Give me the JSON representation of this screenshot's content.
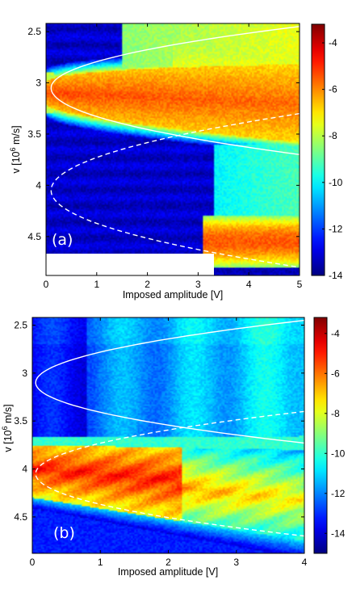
{
  "chart_data": [
    {
      "type": "heatmap",
      "panel_label": "(a)",
      "xlabel": "Imposed amplitude [V]",
      "ylabel": "v [10",
      "ylabel_exp": "6",
      "ylabel_unit": " m/s]",
      "xlim": [
        0,
        5
      ],
      "ylim": [
        2.42,
        4.88
      ],
      "y_inverted": true,
      "x_ticks": [
        "0",
        "1",
        "2",
        "3",
        "4",
        "5"
      ],
      "y_ticks": [
        "2.5",
        "3",
        "3.5",
        "4",
        "4.5"
      ],
      "colorbar": {
        "ticks": [
          "-4",
          "-6",
          "-8",
          "-10",
          "-12",
          "-14"
        ],
        "range": [
          -14,
          -3.2
        ],
        "colormap": "jet"
      },
      "background_level": -13.2,
      "features": [
        {
          "name": "upper band",
          "v_center_at_0V": 3.1,
          "v_center_at_max_V": 3.2,
          "v_width": 0.28,
          "level": -5.5
        },
        {
          "name": "lower blob",
          "v_center": 4.55,
          "x_range": [
            3.1,
            5
          ],
          "level": -5.8
        }
      ],
      "curves": [
        {
          "style": "solid",
          "v_vertex": 3.05,
          "amplitude_vertex": 0.1,
          "v_upper_at_max": 2.45,
          "v_lower_at_max": 3.7
        },
        {
          "style": "dashed",
          "v_vertex": 4.05,
          "amplitude_vertex": 0.1,
          "v_upper_at_max": 3.3,
          "v_lower_at_max": 4.8
        }
      ],
      "missing_region": {
        "x_range": [
          0,
          3.3
        ],
        "v_range": [
          4.68,
          4.88
        ]
      }
    },
    {
      "type": "heatmap",
      "panel_label": "(b)",
      "xlabel": "Imposed amplitude [V]",
      "ylabel": "v [10",
      "ylabel_exp": "6",
      "ylabel_unit": " m/s]",
      "xlim": [
        0,
        4
      ],
      "ylim": [
        2.42,
        4.88
      ],
      "y_inverted": true,
      "x_ticks": [
        "0",
        "1",
        "2",
        "3",
        "4"
      ],
      "y_ticks": [
        "2.5",
        "3",
        "3.5",
        "4",
        "4.5"
      ],
      "colorbar": {
        "ticks": [
          "-4",
          "-6",
          "-8",
          "-10",
          "-12",
          "-14"
        ],
        "range": [
          -15,
          -3.2
        ],
        "colormap": "jet"
      },
      "background_level": -13.5,
      "features": [
        {
          "name": "main band",
          "v_top": 3.75,
          "v_bottom_at_0V": 4.3,
          "v_bottom_at_max_V": 4.75,
          "level": -6.0
        },
        {
          "name": "upper region",
          "v_range": [
            2.45,
            3.75
          ],
          "level": -11.5
        }
      ],
      "curves": [
        {
          "style": "solid",
          "v_vertex": 3.1,
          "amplitude_vertex": 0.05,
          "v_upper_at_max": 2.45,
          "v_lower_at_max": 3.73
        },
        {
          "style": "dashed",
          "v_vertex": 4.05,
          "amplitude_vertex": 0.05,
          "v_upper_at_max": 3.4,
          "v_lower_at_max": 4.7
        }
      ]
    }
  ]
}
